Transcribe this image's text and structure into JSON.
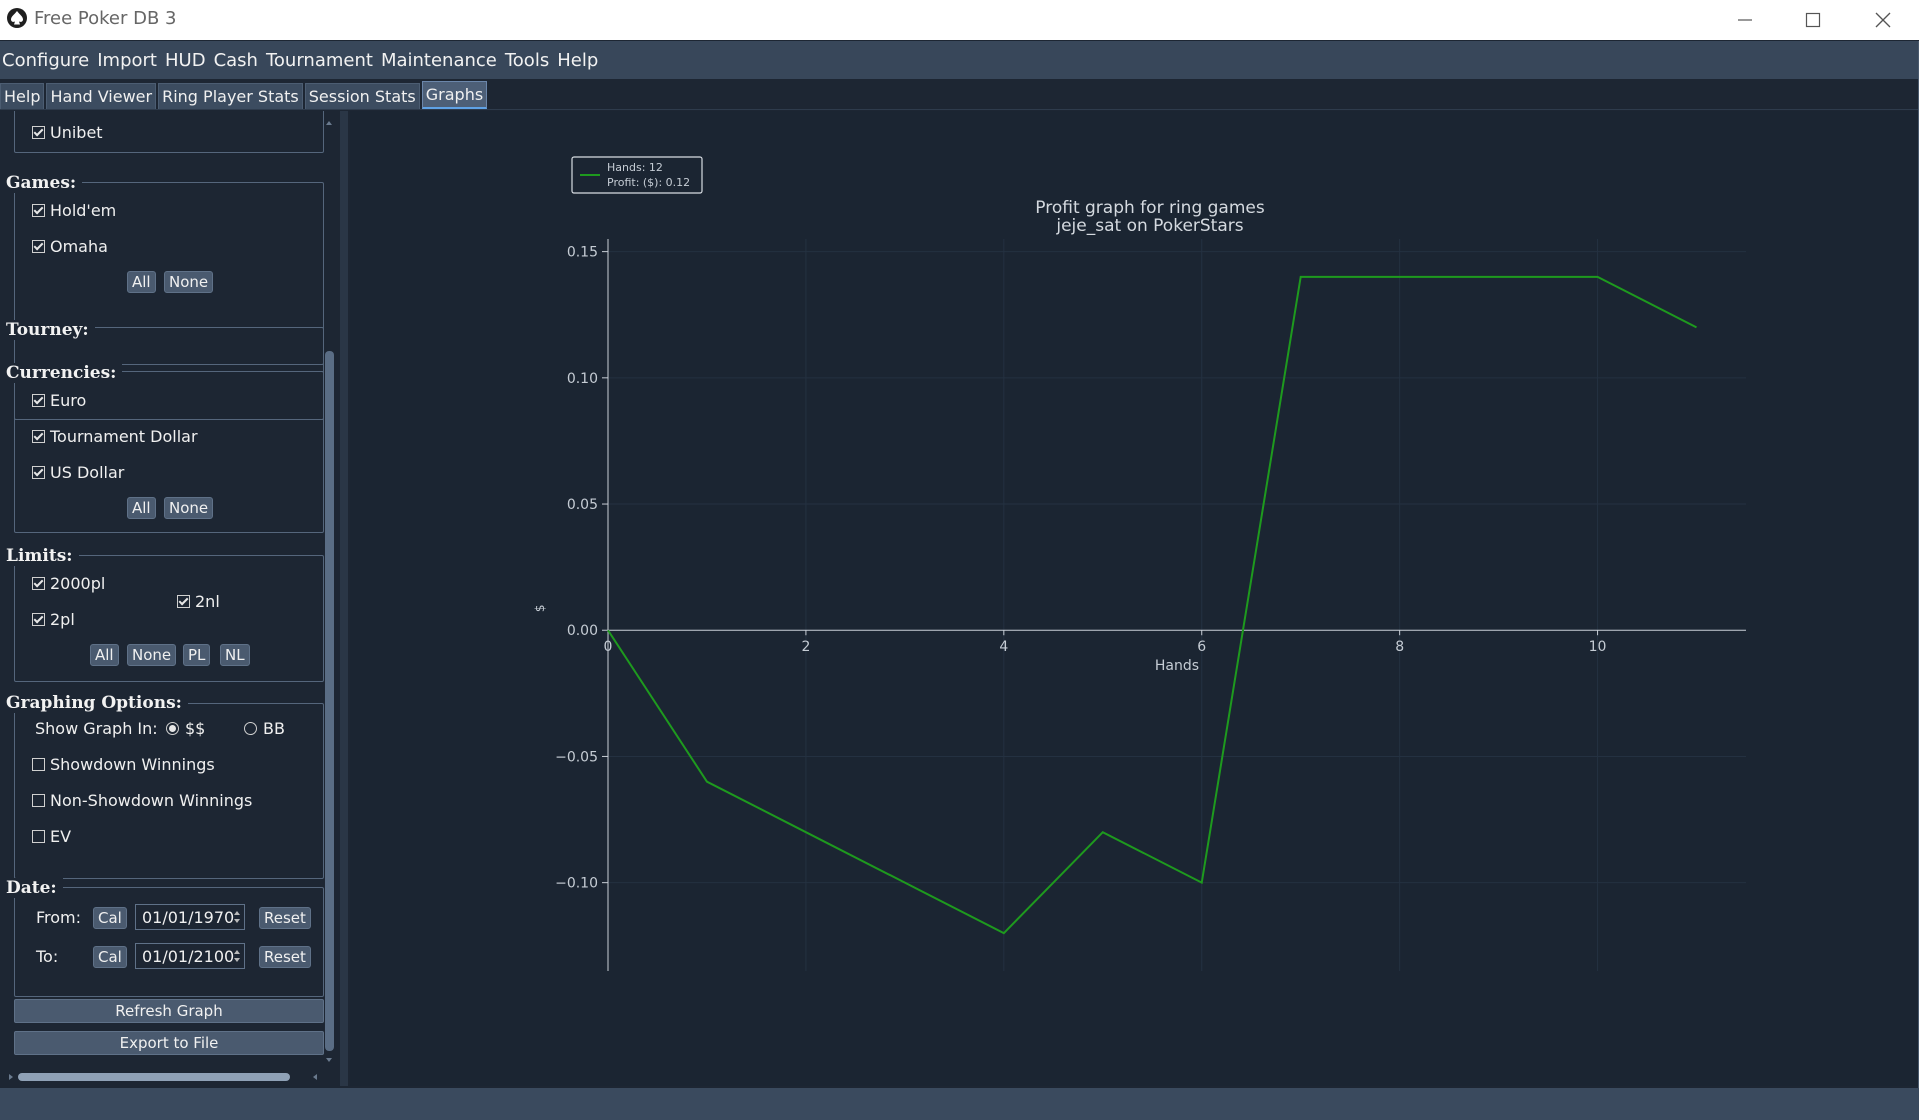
{
  "window": {
    "title": "Free Poker DB 3",
    "accent_color": "#5fa2e6"
  },
  "menu": [
    "Configure",
    "Import",
    "HUD",
    "Cash",
    "Tournament",
    "Maintenance",
    "Tools",
    "Help"
  ],
  "tabs": [
    "Help",
    "Hand Viewer",
    "Ring Player Stats",
    "Session Stats",
    "Graphs"
  ],
  "active_tab": "Graphs",
  "filters": {
    "sites": {
      "items": [
        {
          "label": "Unibet",
          "checked": true
        }
      ]
    },
    "games": {
      "title": "Games:",
      "items": [
        {
          "label": "Hold'em",
          "checked": true
        },
        {
          "label": "Omaha",
          "checked": true
        }
      ],
      "all_label": "All",
      "none_label": "None"
    },
    "tourney": {
      "title": "Tourney:"
    },
    "currencies": {
      "title": "Currencies:",
      "items": [
        {
          "label": "Euro",
          "checked": true
        },
        {
          "label": "Tournament Dollar",
          "checked": true
        },
        {
          "label": "US Dollar",
          "checked": true
        }
      ],
      "all_label": "All",
      "none_label": "None"
    },
    "limits": {
      "title": "Limits:",
      "items": [
        {
          "label": "2000pl",
          "checked": true
        },
        {
          "label": "2pl",
          "checked": true
        },
        {
          "label": "2nl",
          "checked": true
        }
      ],
      "all_label": "All",
      "none_label": "None",
      "pl_label": "PL",
      "nl_label": "NL"
    },
    "graphing": {
      "title": "Graphing Options:",
      "show_in_label": "Show Graph In:",
      "options": [
        {
          "label": "$$",
          "selected": true
        },
        {
          "label": "BB",
          "selected": false
        }
      ],
      "checks": [
        {
          "label": "Showdown Winnings",
          "checked": false
        },
        {
          "label": "Non-Showdown Winnings",
          "checked": false
        },
        {
          "label": "EV",
          "checked": false
        }
      ]
    },
    "date": {
      "title": "Date:",
      "from_label": "From:",
      "to_label": "To:",
      "cal_label": "Cal",
      "reset_label": "Reset",
      "from_value": "01/01/1970",
      "to_value": "01/01/2100"
    }
  },
  "actions": {
    "refresh": "Refresh Graph",
    "export": "Export to File"
  },
  "chart_data": {
    "type": "line",
    "title": "Profit graph for ring games",
    "subtitle": "jeje_sat on PokerStars",
    "xlabel": "Hands",
    "ylabel": "$",
    "xlim": [
      0,
      11.5
    ],
    "ylim": [
      -0.135,
      0.155
    ],
    "x_ticks": [
      0,
      2,
      4,
      6,
      8,
      10
    ],
    "y_ticks": [
      0.15,
      0.1,
      0.05,
      0.0,
      -0.05,
      -0.1
    ],
    "y_tick_labels": [
      "0.15",
      "0.10",
      "0.05",
      "0.00",
      "−0.05",
      "−0.10"
    ],
    "grid": true,
    "legend_position": "top-left",
    "legend": [
      "Hands: 12",
      "Profit: ($): 0.12"
    ],
    "line_color": "#1e9a1e",
    "series": [
      {
        "x": [
          0,
          1,
          2,
          3,
          4,
          5,
          6,
          7,
          8,
          9,
          10,
          11
        ],
        "values": [
          0.0,
          -0.06,
          -0.08,
          -0.1,
          -0.12,
          -0.08,
          -0.1,
          0.14,
          0.14,
          0.14,
          0.14,
          0.12
        ]
      }
    ]
  }
}
